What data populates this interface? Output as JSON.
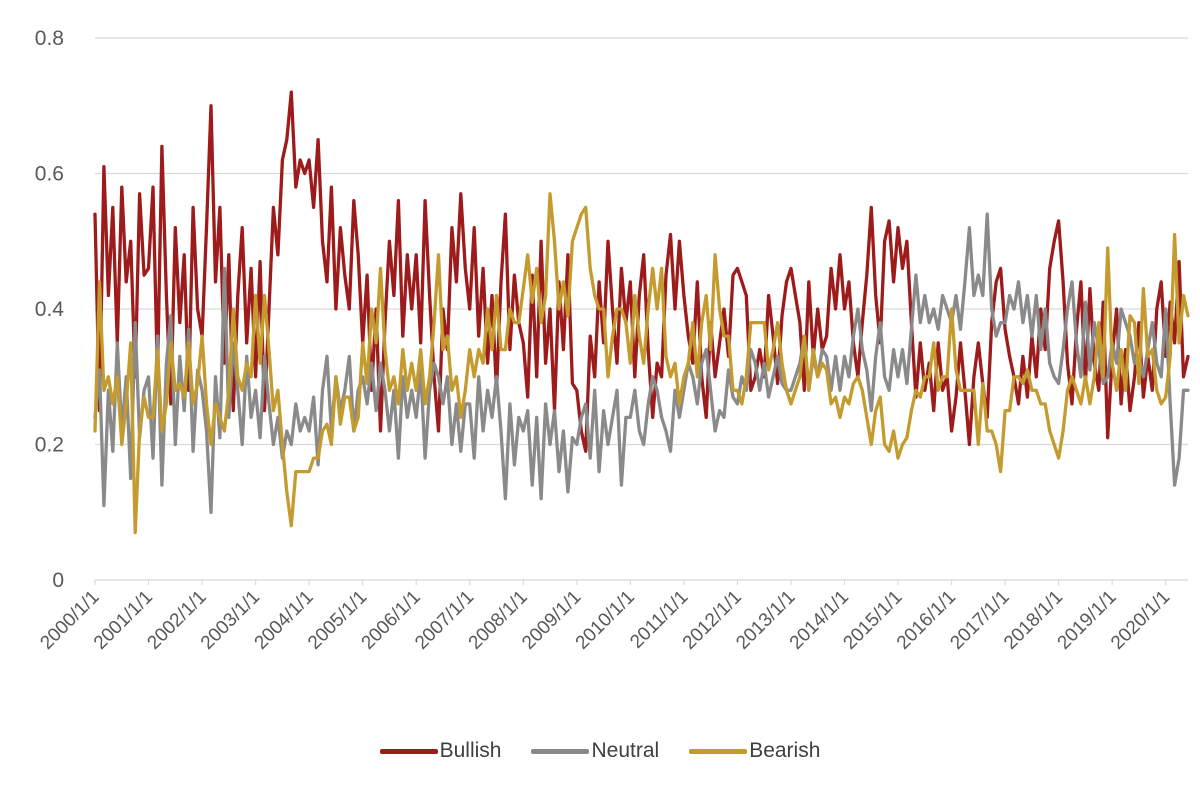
{
  "chart_data": {
    "type": "line",
    "title": "",
    "xlabel": "",
    "ylabel": "",
    "ylim": [
      0,
      0.8
    ],
    "y_ticks": [
      0,
      0.2,
      0.4,
      0.6,
      0.8
    ],
    "grid": "horizontal",
    "grid_color": "#d9d9d9",
    "axis_label_color": "#595959",
    "legend_position": "bottom",
    "x_tick_every": 12,
    "x_tick_labels": [
      "2000/1/1",
      "2001/1/1",
      "2002/1/1",
      "2003/1/1",
      "2004/1/1",
      "2005/1/1",
      "2006/1/1",
      "2007/1/1",
      "2008/1/1",
      "2009/1/1",
      "2010/1/1",
      "2011/1/1",
      "2012/1/1",
      "2013/1/1",
      "2014/1/1",
      "2015/1/1",
      "2016/1/1",
      "2017/1/1",
      "2018/1/1",
      "2019/1/1",
      "2020/1/1"
    ],
    "x_unit": "monthly samples from 2000/1 to 2020/6",
    "series": [
      {
        "name": "Bullish",
        "color": "#9e1b1b",
        "values": [
          0.54,
          0.25,
          0.61,
          0.42,
          0.55,
          0.35,
          0.58,
          0.44,
          0.5,
          0.3,
          0.57,
          0.45,
          0.46,
          0.58,
          0.3,
          0.64,
          0.42,
          0.26,
          0.52,
          0.38,
          0.48,
          0.28,
          0.55,
          0.4,
          0.36,
          0.52,
          0.7,
          0.44,
          0.55,
          0.32,
          0.48,
          0.25,
          0.42,
          0.52,
          0.35,
          0.46,
          0.3,
          0.47,
          0.25,
          0.4,
          0.55,
          0.48,
          0.62,
          0.65,
          0.72,
          0.58,
          0.62,
          0.6,
          0.62,
          0.55,
          0.65,
          0.5,
          0.44,
          0.58,
          0.4,
          0.52,
          0.45,
          0.4,
          0.56,
          0.48,
          0.35,
          0.45,
          0.28,
          0.4,
          0.22,
          0.38,
          0.5,
          0.42,
          0.56,
          0.36,
          0.48,
          0.4,
          0.48,
          0.35,
          0.56,
          0.42,
          0.3,
          0.22,
          0.4,
          0.34,
          0.52,
          0.44,
          0.57,
          0.46,
          0.4,
          0.52,
          0.36,
          0.46,
          0.32,
          0.42,
          0.28,
          0.44,
          0.54,
          0.34,
          0.45,
          0.38,
          0.35,
          0.27,
          0.45,
          0.3,
          0.5,
          0.32,
          0.4,
          0.25,
          0.44,
          0.34,
          0.48,
          0.29,
          0.28,
          0.22,
          0.19,
          0.36,
          0.3,
          0.44,
          0.35,
          0.5,
          0.4,
          0.32,
          0.46,
          0.38,
          0.44,
          0.3,
          0.42,
          0.48,
          0.34,
          0.24,
          0.32,
          0.3,
          0.45,
          0.51,
          0.4,
          0.5,
          0.42,
          0.36,
          0.32,
          0.44,
          0.3,
          0.24,
          0.38,
          0.3,
          0.35,
          0.4,
          0.33,
          0.45,
          0.46,
          0.44,
          0.42,
          0.28,
          0.3,
          0.34,
          0.3,
          0.42,
          0.36,
          0.29,
          0.39,
          0.44,
          0.46,
          0.42,
          0.38,
          0.28,
          0.44,
          0.33,
          0.4,
          0.34,
          0.36,
          0.46,
          0.4,
          0.48,
          0.4,
          0.44,
          0.35,
          0.3,
          0.38,
          0.45,
          0.55,
          0.42,
          0.35,
          0.5,
          0.53,
          0.44,
          0.52,
          0.46,
          0.5,
          0.38,
          0.27,
          0.35,
          0.28,
          0.32,
          0.25,
          0.35,
          0.28,
          0.3,
          0.22,
          0.27,
          0.35,
          0.28,
          0.2,
          0.3,
          0.35,
          0.29,
          0.24,
          0.38,
          0.44,
          0.46,
          0.37,
          0.33,
          0.3,
          0.26,
          0.33,
          0.27,
          0.36,
          0.3,
          0.4,
          0.34,
          0.46,
          0.5,
          0.53,
          0.44,
          0.32,
          0.26,
          0.37,
          0.44,
          0.29,
          0.43,
          0.32,
          0.28,
          0.41,
          0.21,
          0.33,
          0.4,
          0.26,
          0.34,
          0.25,
          0.3,
          0.38,
          0.27,
          0.33,
          0.28,
          0.4,
          0.44,
          0.33,
          0.41,
          0.35,
          0.47,
          0.3,
          0.33
        ]
      },
      {
        "name": "Neutral",
        "color": "#8a8a8a",
        "values": [
          0.24,
          0.31,
          0.11,
          0.28,
          0.19,
          0.35,
          0.22,
          0.3,
          0.15,
          0.38,
          0.21,
          0.28,
          0.3,
          0.18,
          0.36,
          0.14,
          0.32,
          0.39,
          0.2,
          0.33,
          0.25,
          0.37,
          0.19,
          0.31,
          0.28,
          0.22,
          0.1,
          0.3,
          0.21,
          0.46,
          0.24,
          0.35,
          0.28,
          0.2,
          0.33,
          0.24,
          0.28,
          0.21,
          0.33,
          0.26,
          0.2,
          0.24,
          0.18,
          0.22,
          0.2,
          0.26,
          0.22,
          0.24,
          0.22,
          0.27,
          0.17,
          0.28,
          0.33,
          0.22,
          0.3,
          0.25,
          0.28,
          0.33,
          0.22,
          0.28,
          0.3,
          0.26,
          0.32,
          0.25,
          0.32,
          0.28,
          0.22,
          0.28,
          0.18,
          0.3,
          0.24,
          0.28,
          0.24,
          0.31,
          0.18,
          0.28,
          0.32,
          0.3,
          0.26,
          0.3,
          0.2,
          0.26,
          0.19,
          0.26,
          0.26,
          0.18,
          0.3,
          0.22,
          0.28,
          0.24,
          0.3,
          0.22,
          0.12,
          0.26,
          0.17,
          0.24,
          0.22,
          0.25,
          0.14,
          0.24,
          0.12,
          0.26,
          0.2,
          0.25,
          0.16,
          0.22,
          0.13,
          0.21,
          0.2,
          0.24,
          0.26,
          0.18,
          0.28,
          0.16,
          0.25,
          0.2,
          0.24,
          0.28,
          0.14,
          0.24,
          0.24,
          0.28,
          0.22,
          0.2,
          0.26,
          0.3,
          0.28,
          0.24,
          0.22,
          0.19,
          0.28,
          0.24,
          0.28,
          0.32,
          0.3,
          0.26,
          0.32,
          0.34,
          0.28,
          0.22,
          0.25,
          0.24,
          0.31,
          0.27,
          0.26,
          0.3,
          0.28,
          0.34,
          0.32,
          0.28,
          0.32,
          0.27,
          0.3,
          0.33,
          0.29,
          0.28,
          0.28,
          0.3,
          0.32,
          0.36,
          0.28,
          0.33,
          0.3,
          0.34,
          0.33,
          0.28,
          0.33,
          0.28,
          0.33,
          0.3,
          0.36,
          0.4,
          0.34,
          0.31,
          0.25,
          0.33,
          0.38,
          0.3,
          0.28,
          0.34,
          0.3,
          0.34,
          0.29,
          0.37,
          0.45,
          0.38,
          0.42,
          0.38,
          0.4,
          0.37,
          0.42,
          0.4,
          0.38,
          0.42,
          0.37,
          0.44,
          0.52,
          0.42,
          0.45,
          0.42,
          0.54,
          0.4,
          0.36,
          0.38,
          0.38,
          0.42,
          0.4,
          0.44,
          0.38,
          0.42,
          0.36,
          0.42,
          0.34,
          0.4,
          0.32,
          0.3,
          0.29,
          0.34,
          0.4,
          0.44,
          0.35,
          0.3,
          0.41,
          0.31,
          0.38,
          0.34,
          0.29,
          0.3,
          0.35,
          0.32,
          0.4,
          0.38,
          0.36,
          0.32,
          0.33,
          0.3,
          0.34,
          0.38,
          0.32,
          0.3,
          0.4,
          0.26,
          0.14,
          0.18,
          0.28,
          0.28
        ]
      },
      {
        "name": "Bearish",
        "color": "#c49b2e",
        "values": [
          0.22,
          0.44,
          0.28,
          0.3,
          0.26,
          0.3,
          0.2,
          0.26,
          0.35,
          0.07,
          0.22,
          0.27,
          0.24,
          0.24,
          0.34,
          0.22,
          0.26,
          0.35,
          0.28,
          0.29,
          0.27,
          0.35,
          0.26,
          0.29,
          0.36,
          0.26,
          0.2,
          0.26,
          0.24,
          0.22,
          0.28,
          0.4,
          0.3,
          0.28,
          0.32,
          0.3,
          0.42,
          0.32,
          0.42,
          0.34,
          0.25,
          0.28,
          0.2,
          0.13,
          0.08,
          0.16,
          0.16,
          0.16,
          0.16,
          0.18,
          0.18,
          0.22,
          0.23,
          0.2,
          0.3,
          0.23,
          0.27,
          0.27,
          0.22,
          0.24,
          0.35,
          0.29,
          0.4,
          0.35,
          0.46,
          0.34,
          0.28,
          0.3,
          0.26,
          0.34,
          0.28,
          0.32,
          0.28,
          0.34,
          0.26,
          0.3,
          0.38,
          0.48,
          0.34,
          0.36,
          0.28,
          0.3,
          0.24,
          0.28,
          0.34,
          0.3,
          0.34,
          0.32,
          0.4,
          0.34,
          0.42,
          0.34,
          0.34,
          0.4,
          0.38,
          0.38,
          0.43,
          0.48,
          0.41,
          0.46,
          0.38,
          0.42,
          0.57,
          0.5,
          0.4,
          0.44,
          0.39,
          0.5,
          0.52,
          0.54,
          0.55,
          0.46,
          0.42,
          0.4,
          0.4,
          0.3,
          0.36,
          0.4,
          0.4,
          0.38,
          0.32,
          0.42,
          0.36,
          0.32,
          0.4,
          0.46,
          0.4,
          0.46,
          0.33,
          0.3,
          0.32,
          0.26,
          0.3,
          0.32,
          0.38,
          0.3,
          0.38,
          0.42,
          0.34,
          0.48,
          0.4,
          0.36,
          0.36,
          0.28,
          0.28,
          0.26,
          0.3,
          0.38,
          0.38,
          0.38,
          0.38,
          0.31,
          0.34,
          0.38,
          0.32,
          0.28,
          0.26,
          0.28,
          0.3,
          0.36,
          0.28,
          0.34,
          0.3,
          0.32,
          0.31,
          0.26,
          0.27,
          0.24,
          0.27,
          0.26,
          0.29,
          0.3,
          0.28,
          0.24,
          0.2,
          0.25,
          0.27,
          0.2,
          0.19,
          0.22,
          0.18,
          0.2,
          0.21,
          0.25,
          0.28,
          0.27,
          0.3,
          0.3,
          0.35,
          0.28,
          0.3,
          0.3,
          0.4,
          0.31,
          0.28,
          0.28,
          0.28,
          0.28,
          0.2,
          0.29,
          0.22,
          0.22,
          0.2,
          0.16,
          0.25,
          0.25,
          0.3,
          0.3,
          0.29,
          0.31,
          0.28,
          0.28,
          0.26,
          0.26,
          0.22,
          0.2,
          0.18,
          0.22,
          0.28,
          0.3,
          0.28,
          0.26,
          0.3,
          0.26,
          0.3,
          0.38,
          0.3,
          0.49,
          0.32,
          0.28,
          0.34,
          0.28,
          0.39,
          0.38,
          0.29,
          0.43,
          0.33,
          0.34,
          0.28,
          0.26,
          0.27,
          0.33,
          0.51,
          0.35,
          0.42,
          0.39
        ]
      }
    ]
  }
}
